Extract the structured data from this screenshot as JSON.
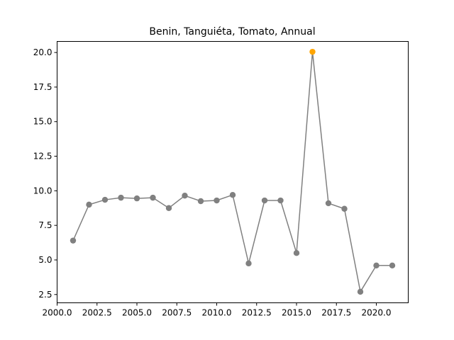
{
  "chart_data": {
    "type": "line",
    "title": "Benin, Tanguiéta, Tomato, Annual",
    "xlabel": "",
    "ylabel": "",
    "xlim": [
      2000.0,
      2022.0
    ],
    "ylim": [
      1.9,
      20.8
    ],
    "x_ticks": [
      2000.0,
      2002.5,
      2005.0,
      2007.5,
      2010.0,
      2012.5,
      2015.0,
      2017.5,
      2020.0
    ],
    "x_tick_labels": [
      "2000.0",
      "2002.5",
      "2005.0",
      "2007.5",
      "2010.0",
      "2012.5",
      "2015.0",
      "2017.5",
      "2020.0"
    ],
    "y_ticks": [
      2.5,
      5.0,
      7.5,
      10.0,
      12.5,
      15.0,
      17.5,
      20.0
    ],
    "y_tick_labels": [
      "2.5",
      "5.0",
      "7.5",
      "10.0",
      "12.5",
      "15.0",
      "17.5",
      "20.0"
    ],
    "grid": false,
    "colors": {
      "line": "#808080",
      "point": "#808080",
      "highlight": "#ffa500"
    },
    "series": [
      {
        "x": [
          2001,
          2002,
          2003,
          2004,
          2005,
          2006,
          2007,
          2008,
          2009,
          2010,
          2011,
          2012,
          2013,
          2014,
          2015,
          2016,
          2017,
          2018,
          2019,
          2020,
          2021
        ],
        "values": [
          6.4,
          9.0,
          9.35,
          9.5,
          9.45,
          9.5,
          8.75,
          9.65,
          9.25,
          9.3,
          9.7,
          4.75,
          9.3,
          9.3,
          5.5,
          20.05,
          9.1,
          8.7,
          2.7,
          4.6,
          4.6
        ]
      }
    ],
    "highlight_x": [
      2016
    ]
  }
}
